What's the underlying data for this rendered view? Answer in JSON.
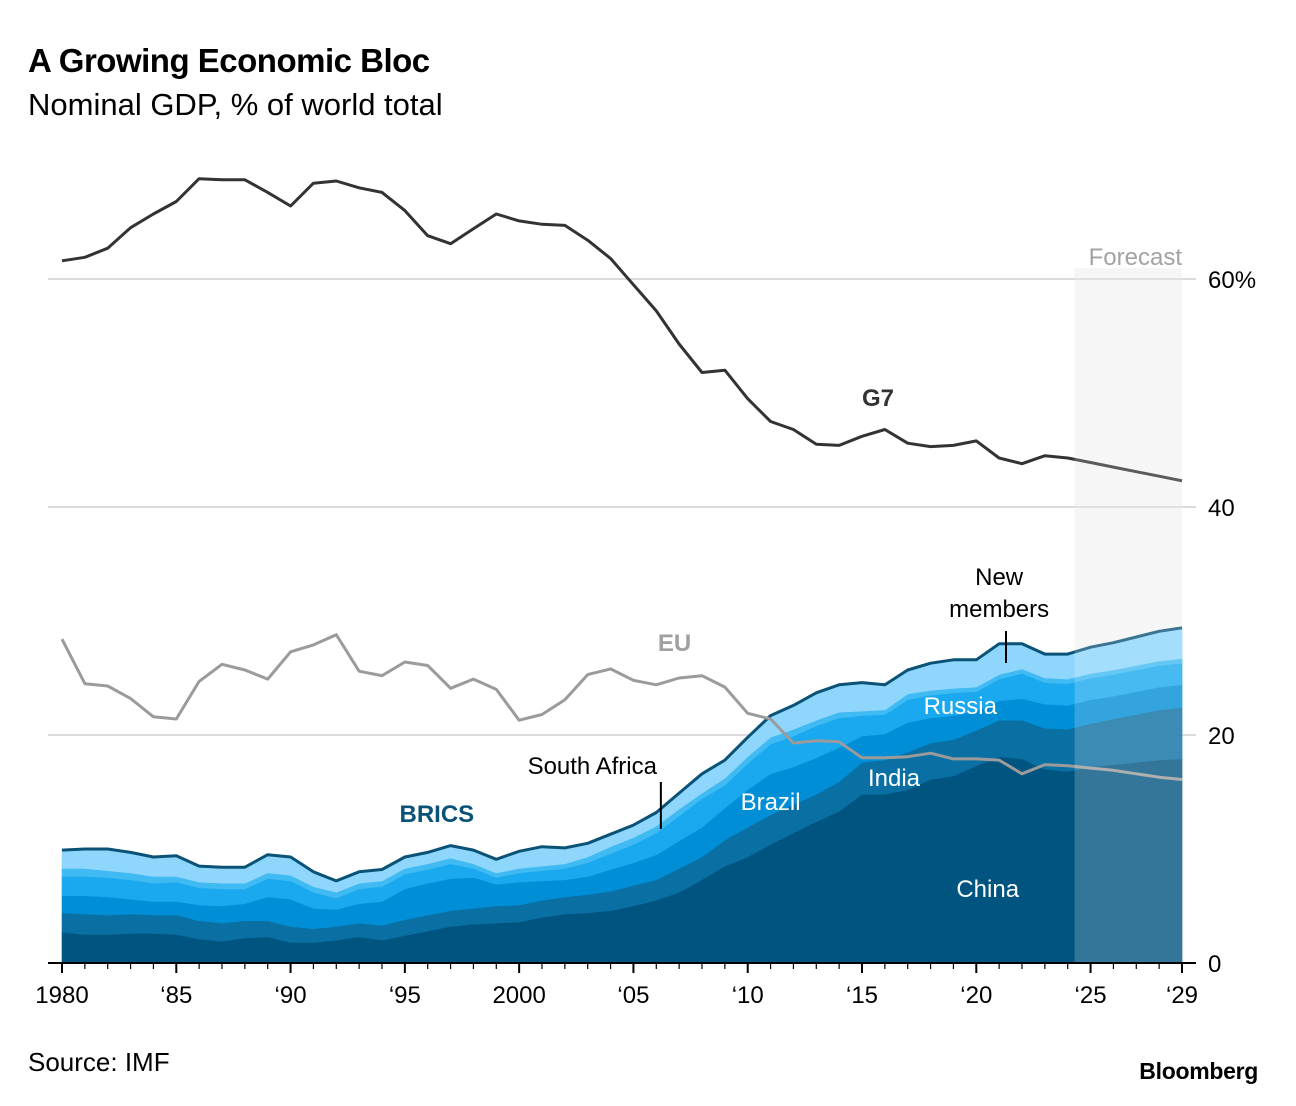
{
  "header": {
    "title": "A Growing Economic Bloc",
    "subtitle": "Nominal GDP, % of world total"
  },
  "footer": {
    "source": "Source: IMF",
    "brand": "Bloomberg"
  },
  "chart_data": {
    "type": "area",
    "x": [
      1980,
      1981,
      1982,
      1983,
      1984,
      1985,
      1986,
      1987,
      1988,
      1989,
      1990,
      1991,
      1992,
      1993,
      1994,
      1995,
      1996,
      1997,
      1998,
      1999,
      2000,
      2001,
      2002,
      2003,
      2004,
      2005,
      2006,
      2007,
      2008,
      2009,
      2010,
      2011,
      2012,
      2013,
      2014,
      2015,
      2016,
      2017,
      2018,
      2019,
      2020,
      2021,
      2022,
      2023,
      2024,
      2025,
      2026,
      2027,
      2028,
      2029
    ],
    "x_tick_values": [
      1980,
      1985,
      1990,
      1995,
      2000,
      2005,
      2010,
      2015,
      2020,
      2025,
      2029
    ],
    "x_tick_labels": [
      "1980",
      "‘85",
      "‘90",
      "‘95",
      "2000",
      "‘05",
      "‘10",
      "‘15",
      "‘20",
      "‘25",
      "‘29"
    ],
    "y_ticks": [
      0,
      20,
      40,
      60
    ],
    "y_tick_labels": [
      "0",
      "20",
      "40",
      "60%"
    ],
    "ylim": [
      0,
      69
    ],
    "grid": true,
    "forecast": {
      "label": "Forecast",
      "start": 2024.3,
      "end": 2029
    },
    "lines": [
      {
        "name": "G7",
        "color": "#333333",
        "values": [
          61.6,
          61.9,
          62.7,
          64.5,
          65.7,
          66.8,
          68.8,
          68.7,
          68.7,
          67.6,
          66.4,
          68.4,
          68.6,
          68.0,
          67.6,
          66.0,
          63.8,
          63.1,
          64.4,
          65.7,
          65.1,
          64.8,
          64.7,
          63.4,
          61.8,
          59.5,
          57.2,
          54.3,
          51.8,
          52.0,
          49.5,
          47.5,
          46.8,
          45.5,
          45.4,
          46.2,
          46.8,
          45.6,
          45.3,
          45.4,
          45.8,
          44.3,
          43.8,
          44.5,
          44.3,
          43.9,
          43.5,
          43.1,
          42.7,
          42.3
        ]
      },
      {
        "name": "EU",
        "color": "#9b9b9b",
        "values": [
          28.4,
          24.5,
          24.3,
          23.2,
          21.6,
          21.4,
          24.7,
          26.2,
          25.7,
          24.9,
          27.3,
          27.9,
          28.8,
          25.6,
          25.2,
          26.4,
          26.1,
          24.1,
          24.9,
          24.0,
          21.3,
          21.8,
          23.1,
          25.3,
          25.8,
          24.8,
          24.4,
          25.0,
          25.2,
          24.2,
          21.9,
          21.4,
          19.3,
          19.5,
          19.4,
          18.0,
          18.0,
          18.1,
          18.4,
          17.9,
          17.9,
          17.8,
          16.6,
          17.4,
          17.3,
          17.1,
          16.9,
          16.6,
          16.3,
          16.1
        ]
      }
    ],
    "stacks": [
      {
        "name": "China",
        "color": "#005480",
        "values": [
          2.7,
          2.5,
          2.5,
          2.6,
          2.6,
          2.5,
          2.1,
          1.9,
          2.2,
          2.3,
          1.8,
          1.8,
          2.0,
          2.3,
          2.0,
          2.4,
          2.8,
          3.2,
          3.4,
          3.5,
          3.6,
          4.0,
          4.3,
          4.4,
          4.6,
          5.0,
          5.5,
          6.2,
          7.3,
          8.5,
          9.3,
          10.4,
          11.4,
          12.4,
          13.3,
          14.8,
          14.8,
          15.2,
          16.1,
          16.4,
          17.3,
          18.1,
          17.9,
          17.0,
          16.8,
          17.2,
          17.4,
          17.6,
          17.8,
          17.9
        ]
      },
      {
        "name": "India",
        "color": "#0a6fa3",
        "values": [
          1.7,
          1.8,
          1.7,
          1.7,
          1.6,
          1.7,
          1.6,
          1.6,
          1.5,
          1.4,
          1.4,
          1.2,
          1.2,
          1.2,
          1.3,
          1.4,
          1.4,
          1.4,
          1.4,
          1.5,
          1.5,
          1.5,
          1.5,
          1.6,
          1.7,
          1.8,
          1.8,
          2.1,
          2.0,
          2.3,
          2.6,
          2.6,
          2.5,
          2.4,
          2.6,
          2.8,
          3.0,
          3.3,
          3.2,
          3.2,
          3.1,
          3.2,
          3.4,
          3.6,
          3.7,
          3.8,
          4.0,
          4.2,
          4.4,
          4.5
        ]
      },
      {
        "name": "Brazil",
        "color": "#008ed6",
        "values": [
          1.5,
          1.6,
          1.6,
          1.3,
          1.2,
          1.2,
          1.4,
          1.5,
          1.5,
          2.1,
          2.4,
          1.8,
          1.5,
          1.7,
          2.1,
          2.7,
          2.8,
          2.8,
          2.7,
          1.9,
          2.0,
          1.7,
          1.5,
          1.6,
          1.9,
          2.0,
          2.2,
          2.4,
          2.6,
          2.8,
          3.3,
          3.6,
          3.3,
          3.2,
          3.0,
          2.3,
          2.3,
          2.6,
          2.2,
          2.1,
          1.7,
          1.7,
          1.9,
          2.1,
          2.1,
          2.1,
          2.0,
          2.0,
          2.0,
          2.0
        ]
      },
      {
        "name": "Russia",
        "color": "#1aa9ef",
        "values": [
          1.7,
          1.7,
          1.7,
          1.7,
          1.6,
          1.7,
          1.5,
          1.5,
          1.3,
          1.6,
          1.6,
          1.4,
          1.0,
          1.3,
          1.3,
          1.3,
          1.2,
          1.3,
          0.8,
          0.6,
          0.8,
          0.9,
          1.0,
          1.2,
          1.4,
          1.6,
          1.9,
          2.2,
          2.5,
          2.0,
          2.3,
          2.6,
          2.7,
          2.8,
          2.6,
          1.8,
          1.7,
          2.0,
          2.0,
          2.0,
          1.7,
          1.9,
          2.2,
          1.9,
          1.9,
          1.9,
          1.9,
          1.9,
          1.9,
          1.9
        ]
      },
      {
        "name": "South Africa",
        "color": "#3fbaf2",
        "values": [
          0.7,
          0.7,
          0.6,
          0.6,
          0.6,
          0.5,
          0.5,
          0.5,
          0.5,
          0.5,
          0.5,
          0.5,
          0.5,
          0.5,
          0.5,
          0.5,
          0.5,
          0.5,
          0.4,
          0.4,
          0.4,
          0.4,
          0.4,
          0.5,
          0.6,
          0.6,
          0.6,
          0.6,
          0.5,
          0.6,
          0.6,
          0.6,
          0.6,
          0.5,
          0.5,
          0.4,
          0.4,
          0.5,
          0.4,
          0.4,
          0.4,
          0.4,
          0.4,
          0.4,
          0.4,
          0.4,
          0.4,
          0.4,
          0.4,
          0.4
        ]
      },
      {
        "name": "New members",
        "color": "#8fd6fc",
        "values": [
          1.6,
          1.7,
          1.9,
          1.8,
          1.7,
          1.8,
          1.4,
          1.4,
          1.4,
          1.6,
          1.6,
          1.3,
          1.0,
          1.0,
          1.0,
          1.0,
          1.0,
          1.1,
          1.2,
          1.2,
          1.5,
          1.7,
          1.4,
          1.2,
          1.1,
          1.1,
          1.2,
          1.4,
          1.7,
          1.6,
          1.7,
          1.9,
          2.1,
          2.4,
          2.4,
          2.5,
          2.2,
          2.1,
          2.4,
          2.5,
          2.4,
          2.7,
          2.2,
          2.1,
          2.2,
          2.3,
          2.4,
          2.5,
          2.6,
          2.7
        ]
      }
    ],
    "brics_outline_color": "#0b5277",
    "annotations": {
      "g7": "G7",
      "eu": "EU",
      "brics": "BRICS",
      "china": "China",
      "india": "India",
      "brazil": "Brazil",
      "russia": "Russia",
      "south_africa": "South Africa",
      "new_members_line1": "New",
      "new_members_line2": "members"
    }
  }
}
